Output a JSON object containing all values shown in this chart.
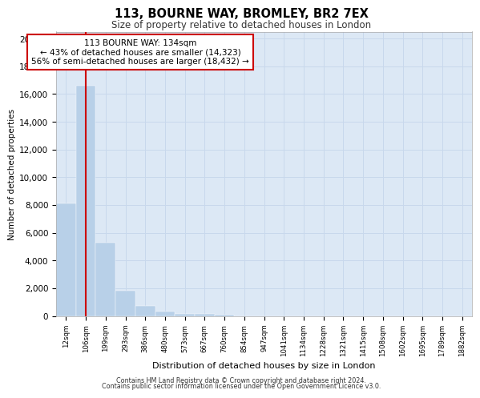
{
  "title1": "113, BOURNE WAY, BROMLEY, BR2 7EX",
  "title2": "Size of property relative to detached houses in London",
  "xlabel": "Distribution of detached houses by size in London",
  "ylabel": "Number of detached properties",
  "categories": [
    "12sqm",
    "106sqm",
    "199sqm",
    "293sqm",
    "386sqm",
    "480sqm",
    "573sqm",
    "667sqm",
    "760sqm",
    "854sqm",
    "947sqm",
    "1041sqm",
    "1134sqm",
    "1228sqm",
    "1321sqm",
    "1415sqm",
    "1508sqm",
    "1602sqm",
    "1695sqm",
    "1789sqm",
    "1882sqm"
  ],
  "values": [
    8100,
    16600,
    5300,
    1800,
    750,
    320,
    170,
    130,
    110,
    0,
    0,
    0,
    0,
    0,
    0,
    0,
    0,
    0,
    0,
    0,
    0
  ],
  "bar_color": "#b8d0e8",
  "bar_edge_color": "#b8d0e8",
  "vline_x": 1,
  "vline_color": "#cc0000",
  "annotation_text": "113 BOURNE WAY: 134sqm\n← 43% of detached houses are smaller (14,323)\n56% of semi-detached houses are larger (18,432) →",
  "annotation_box_color": "#ffffff",
  "annotation_box_edge": "#cc0000",
  "ylim": [
    0,
    20500
  ],
  "yticks": [
    0,
    2000,
    4000,
    6000,
    8000,
    10000,
    12000,
    14000,
    16000,
    18000,
    20000
  ],
  "grid_color": "#c8d8ec",
  "bg_color": "#dce8f5",
  "footer1": "Contains HM Land Registry data © Crown copyright and database right 2024.",
  "footer2": "Contains public sector information licensed under the Open Government Licence v3.0."
}
